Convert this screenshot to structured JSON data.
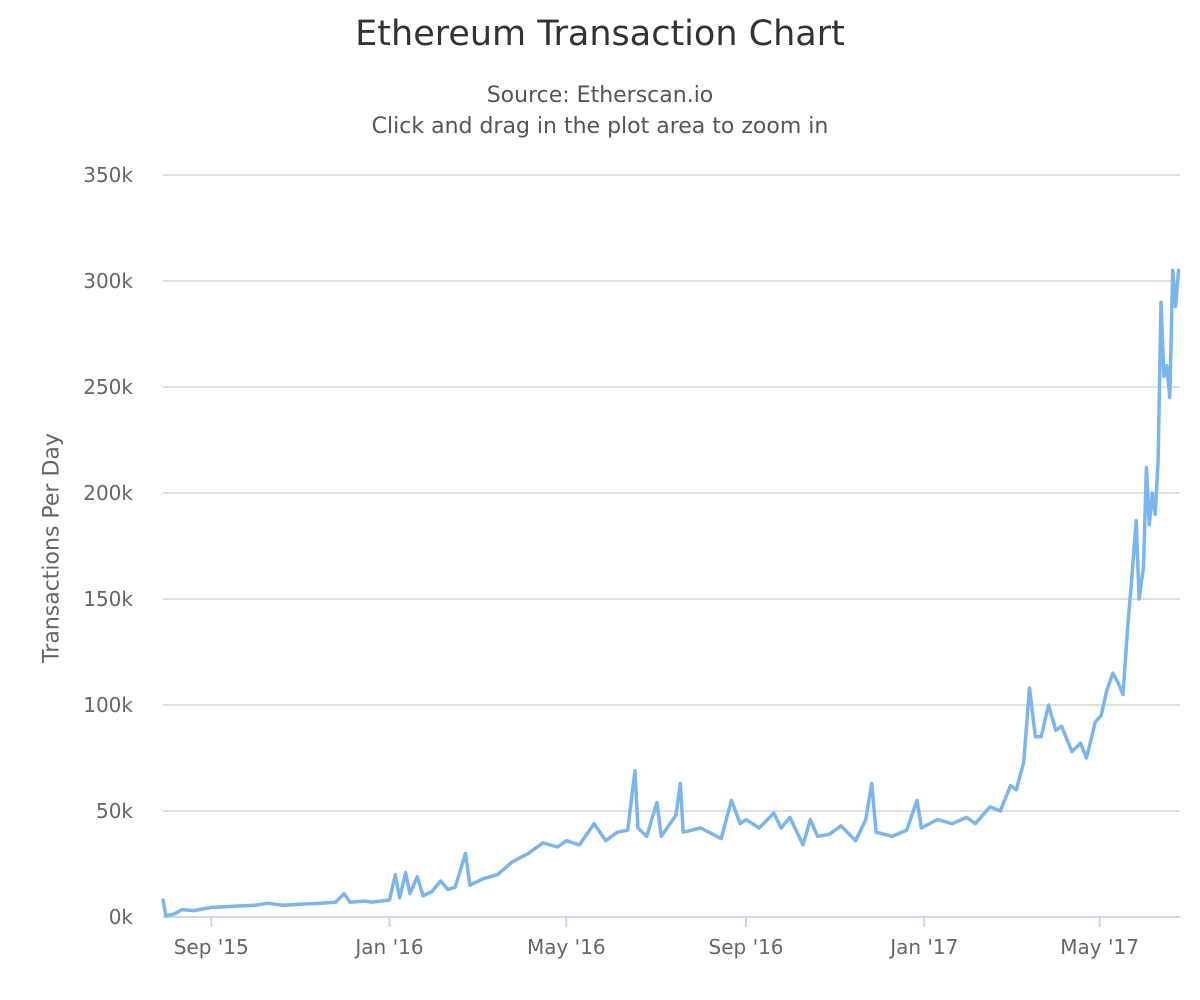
{
  "chart_data": {
    "type": "line",
    "title": "Ethereum Transaction Chart",
    "subtitles": [
      "Source: Etherscan.io",
      "Click and drag in the plot area to zoom in"
    ],
    "ylabel": "Transactions Per Day",
    "xlabel": "",
    "ylim": [
      0,
      350000
    ],
    "xlim": [
      "2015-07-30",
      "2017-06-25"
    ],
    "grid": true,
    "legend": "none",
    "series_color": "#7cb5ec",
    "y_ticks": [
      {
        "value": 0,
        "label": "0k"
      },
      {
        "value": 50000,
        "label": "50k"
      },
      {
        "value": 100000,
        "label": "100k"
      },
      {
        "value": 150000,
        "label": "150k"
      },
      {
        "value": 200000,
        "label": "200k"
      },
      {
        "value": 250000,
        "label": "250k"
      },
      {
        "value": 300000,
        "label": "300k"
      },
      {
        "value": 350000,
        "label": "350k"
      }
    ],
    "x_ticks": [
      {
        "date": "2015-09-01",
        "label": "Sep '15"
      },
      {
        "date": "2016-01-01",
        "label": "Jan '16"
      },
      {
        "date": "2016-05-01",
        "label": "May '16"
      },
      {
        "date": "2016-09-01",
        "label": "Sep '16"
      },
      {
        "date": "2017-01-01",
        "label": "Jan '17"
      },
      {
        "date": "2017-05-01",
        "label": "May '17"
      }
    ],
    "series": [
      {
        "points": [
          [
            "2015-07-30",
            8000
          ],
          [
            "2015-08-01",
            500
          ],
          [
            "2015-08-07",
            1500
          ],
          [
            "2015-08-12",
            3500
          ],
          [
            "2015-08-20",
            3000
          ],
          [
            "2015-09-01",
            4500
          ],
          [
            "2015-09-15",
            5000
          ],
          [
            "2015-10-01",
            5500
          ],
          [
            "2015-10-10",
            6500
          ],
          [
            "2015-10-20",
            5500
          ],
          [
            "2015-11-01",
            6000
          ],
          [
            "2015-11-15",
            6500
          ],
          [
            "2015-11-25",
            7000
          ],
          [
            "2015-12-01",
            11000
          ],
          [
            "2015-12-05",
            7000
          ],
          [
            "2015-12-15",
            7500
          ],
          [
            "2015-12-20",
            7000
          ],
          [
            "2016-01-01",
            8000
          ],
          [
            "2016-01-05",
            20000
          ],
          [
            "2016-01-08",
            9000
          ],
          [
            "2016-01-12",
            21000
          ],
          [
            "2016-01-15",
            11000
          ],
          [
            "2016-01-20",
            19000
          ],
          [
            "2016-01-24",
            10000
          ],
          [
            "2016-01-30",
            12000
          ],
          [
            "2016-02-05",
            17000
          ],
          [
            "2016-02-10",
            13000
          ],
          [
            "2016-02-15",
            14000
          ],
          [
            "2016-02-22",
            30000
          ],
          [
            "2016-02-25",
            15000
          ],
          [
            "2016-03-05",
            18000
          ],
          [
            "2016-03-15",
            20000
          ],
          [
            "2016-03-25",
            26000
          ],
          [
            "2016-04-05",
            30000
          ],
          [
            "2016-04-15",
            35000
          ],
          [
            "2016-04-25",
            33000
          ],
          [
            "2016-05-01",
            36000
          ],
          [
            "2016-05-10",
            34000
          ],
          [
            "2016-05-20",
            44000
          ],
          [
            "2016-05-28",
            36000
          ],
          [
            "2016-06-05",
            40000
          ],
          [
            "2016-06-12",
            41000
          ],
          [
            "2016-06-17",
            69000
          ],
          [
            "2016-06-19",
            42000
          ],
          [
            "2016-06-25",
            38000
          ],
          [
            "2016-07-02",
            54000
          ],
          [
            "2016-07-05",
            38000
          ],
          [
            "2016-07-15",
            48000
          ],
          [
            "2016-07-18",
            63000
          ],
          [
            "2016-07-20",
            40000
          ],
          [
            "2016-08-01",
            42000
          ],
          [
            "2016-08-15",
            37000
          ],
          [
            "2016-08-22",
            55000
          ],
          [
            "2016-08-28",
            44000
          ],
          [
            "2016-09-01",
            46000
          ],
          [
            "2016-09-10",
            42000
          ],
          [
            "2016-09-20",
            49000
          ],
          [
            "2016-09-25",
            42000
          ],
          [
            "2016-10-01",
            47000
          ],
          [
            "2016-10-10",
            34000
          ],
          [
            "2016-10-15",
            46000
          ],
          [
            "2016-10-20",
            38000
          ],
          [
            "2016-10-28",
            39000
          ],
          [
            "2016-11-05",
            43000
          ],
          [
            "2016-11-15",
            36000
          ],
          [
            "2016-11-22",
            46000
          ],
          [
            "2016-11-26",
            63000
          ],
          [
            "2016-11-29",
            40000
          ],
          [
            "2016-12-10",
            38000
          ],
          [
            "2016-12-20",
            41000
          ],
          [
            "2016-12-27",
            55000
          ],
          [
            "2016-12-30",
            42000
          ],
          [
            "2017-01-10",
            46000
          ],
          [
            "2017-01-20",
            44000
          ],
          [
            "2017-01-30",
            47000
          ],
          [
            "2017-02-05",
            44000
          ],
          [
            "2017-02-15",
            52000
          ],
          [
            "2017-02-22",
            50000
          ],
          [
            "2017-03-01",
            62000
          ],
          [
            "2017-03-05",
            60000
          ],
          [
            "2017-03-10",
            73000
          ],
          [
            "2017-03-14",
            108000
          ],
          [
            "2017-03-18",
            85000
          ],
          [
            "2017-03-22",
            85000
          ],
          [
            "2017-03-27",
            100000
          ],
          [
            "2017-04-01",
            88000
          ],
          [
            "2017-04-05",
            90000
          ],
          [
            "2017-04-12",
            78000
          ],
          [
            "2017-04-18",
            82000
          ],
          [
            "2017-04-22",
            75000
          ],
          [
            "2017-04-28",
            92000
          ],
          [
            "2017-05-02",
            95000
          ],
          [
            "2017-05-06",
            107000
          ],
          [
            "2017-05-10",
            115000
          ],
          [
            "2017-05-14",
            110000
          ],
          [
            "2017-05-17",
            105000
          ],
          [
            "2017-05-20",
            135000
          ],
          [
            "2017-05-23",
            160000
          ],
          [
            "2017-05-26",
            187000
          ],
          [
            "2017-05-28",
            150000
          ],
          [
            "2017-05-31",
            165000
          ],
          [
            "2017-06-02",
            212000
          ],
          [
            "2017-06-04",
            185000
          ],
          [
            "2017-06-06",
            200000
          ],
          [
            "2017-06-08",
            190000
          ],
          [
            "2017-06-10",
            215000
          ],
          [
            "2017-06-12",
            290000
          ],
          [
            "2017-06-14",
            255000
          ],
          [
            "2017-06-16",
            260000
          ],
          [
            "2017-06-18",
            245000
          ],
          [
            "2017-06-20",
            305000
          ],
          [
            "2017-06-22",
            288000
          ],
          [
            "2017-06-24",
            305000
          ]
        ]
      }
    ]
  }
}
